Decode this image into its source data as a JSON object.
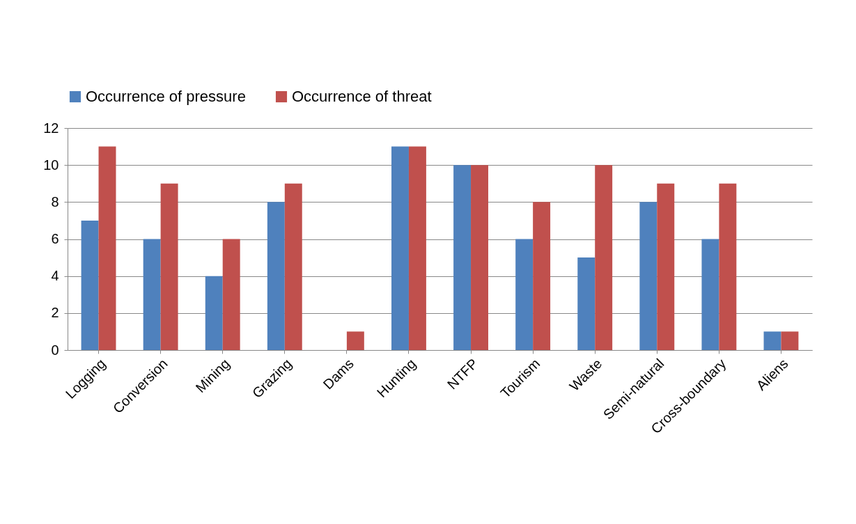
{
  "chart_data": {
    "type": "bar",
    "categories": [
      "Logging",
      "Conversion",
      "Mining",
      "Grazing",
      "Dams",
      "Hunting",
      "NTFP",
      "Tourism",
      "Waste",
      "Semi-natural",
      "Cross-boundary",
      "Aliens"
    ],
    "series": [
      {
        "name": "Occurrence of pressure",
        "color": "#4f81bd",
        "values": [
          7,
          6,
          4,
          8,
          0,
          11,
          10,
          6,
          5,
          8,
          6,
          1
        ]
      },
      {
        "name": "Occurrence of threat",
        "color": "#c0504d",
        "values": [
          11,
          9,
          6,
          9,
          1,
          11,
          10,
          8,
          10,
          9,
          9,
          1
        ]
      }
    ],
    "ylim": [
      0,
      12
    ],
    "yticks": [
      0,
      2,
      4,
      6,
      8,
      10,
      12
    ],
    "grid": "y",
    "legend": "top"
  }
}
